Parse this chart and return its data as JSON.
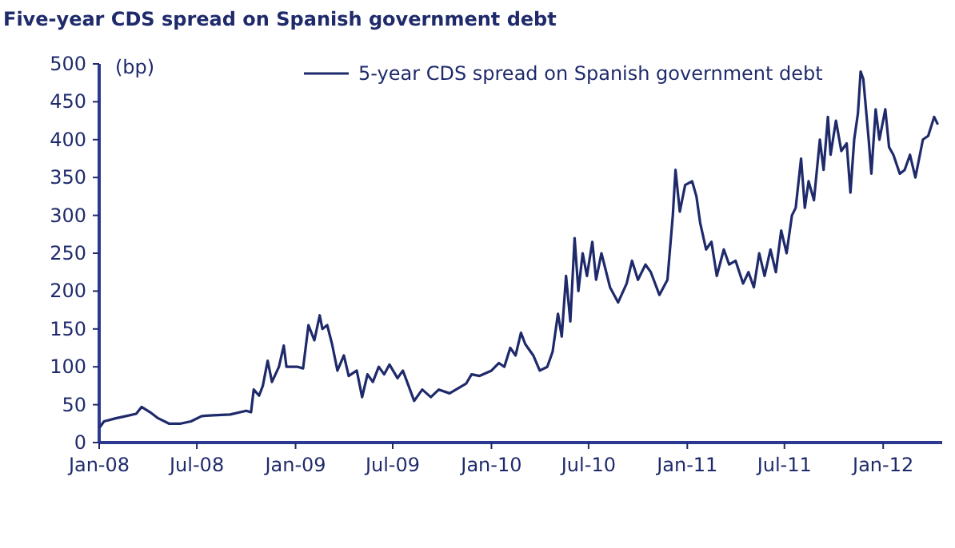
{
  "chart_data": {
    "type": "line",
    "title": "Five-year CDS spread on Spanish government debt",
    "ylabel": "(bp)",
    "x": [
      "2008-01-02",
      "2008-01-10",
      "2008-02-01",
      "2008-02-20",
      "2008-03-10",
      "2008-03-20",
      "2008-04-05",
      "2008-04-20",
      "2008-05-10",
      "2008-06-01",
      "2008-06-20",
      "2008-07-10",
      "2008-08-01",
      "2008-09-01",
      "2008-10-01",
      "2008-10-10",
      "2008-10-15",
      "2008-10-25",
      "2008-11-01",
      "2008-11-10",
      "2008-11-18",
      "2008-12-01",
      "2008-12-10",
      "2008-12-15",
      "2009-01-05",
      "2009-01-15",
      "2009-01-25",
      "2009-02-05",
      "2009-02-15",
      "2009-02-20",
      "2009-03-01",
      "2009-03-10",
      "2009-03-20",
      "2009-04-01",
      "2009-04-10",
      "2009-04-25",
      "2009-05-05",
      "2009-05-15",
      "2009-05-25",
      "2009-06-05",
      "2009-06-15",
      "2009-06-25",
      "2009-07-10",
      "2009-07-20",
      "2009-08-10",
      "2009-08-25",
      "2009-09-10",
      "2009-09-25",
      "2009-10-15",
      "2009-11-15",
      "2009-11-25",
      "2009-12-10",
      "2010-01-01",
      "2010-01-15",
      "2010-01-25",
      "2010-02-05",
      "2010-02-15",
      "2010-02-25",
      "2010-03-05",
      "2010-03-20",
      "2010-04-01",
      "2010-04-15",
      "2010-04-25",
      "2010-05-05",
      "2010-05-12",
      "2010-05-20",
      "2010-05-28",
      "2010-06-05",
      "2010-06-12",
      "2010-06-20",
      "2010-06-28",
      "2010-07-08",
      "2010-07-15",
      "2010-07-25",
      "2010-08-10",
      "2010-08-25",
      "2010-09-10",
      "2010-09-20",
      "2010-10-01",
      "2010-10-15",
      "2010-10-25",
      "2010-11-10",
      "2010-11-25",
      "2010-12-05",
      "2010-12-10",
      "2010-12-18",
      "2010-12-28",
      "2011-01-10",
      "2011-01-18",
      "2011-01-25",
      "2011-02-05",
      "2011-02-15",
      "2011-02-25",
      "2011-03-10",
      "2011-03-20",
      "2011-04-01",
      "2011-04-15",
      "2011-04-25",
      "2011-05-05",
      "2011-05-15",
      "2011-05-25",
      "2011-06-05",
      "2011-06-15",
      "2011-06-25",
      "2011-07-05",
      "2011-07-15",
      "2011-07-22",
      "2011-08-01",
      "2011-08-08",
      "2011-08-15",
      "2011-08-25",
      "2011-09-05",
      "2011-09-12",
      "2011-09-20",
      "2011-09-25",
      "2011-10-05",
      "2011-10-15",
      "2011-10-25",
      "2011-11-01",
      "2011-11-08",
      "2011-11-15",
      "2011-11-20",
      "2011-11-25",
      "2011-12-05",
      "2011-12-10",
      "2011-12-18",
      "2011-12-25",
      "2012-01-05",
      "2012-01-12",
      "2012-01-20",
      "2012-02-01",
      "2012-02-10",
      "2012-02-20",
      "2012-03-01",
      "2012-03-15",
      "2012-03-25",
      "2012-04-05",
      "2012-04-12"
    ],
    "series": [
      {
        "name": "5-year CDS spread on Spanish government debt",
        "color": "#1f2a6b",
        "values": [
          20,
          28,
          32,
          35,
          38,
          47,
          40,
          32,
          25,
          25,
          28,
          35,
          36,
          37,
          42,
          40,
          70,
          62,
          75,
          108,
          80,
          100,
          128,
          100,
          100,
          98,
          155,
          135,
          168,
          150,
          155,
          130,
          95,
          115,
          88,
          95,
          60,
          90,
          80,
          100,
          90,
          103,
          85,
          95,
          55,
          70,
          60,
          70,
          65,
          78,
          90,
          88,
          95,
          105,
          100,
          125,
          115,
          145,
          130,
          115,
          95,
          100,
          120,
          170,
          140,
          220,
          160,
          270,
          200,
          250,
          220,
          265,
          215,
          250,
          205,
          185,
          210,
          240,
          215,
          235,
          225,
          195,
          215,
          300,
          360,
          305,
          340,
          345,
          325,
          290,
          255,
          265,
          220,
          255,
          235,
          240,
          210,
          225,
          205,
          250,
          220,
          255,
          225,
          280,
          250,
          300,
          310,
          375,
          310,
          345,
          320,
          400,
          360,
          430,
          380,
          425,
          385,
          395,
          330,
          400,
          435,
          490,
          480,
          400,
          355,
          440,
          400,
          440,
          390,
          380,
          355,
          360,
          380,
          350,
          400,
          405,
          430,
          420
        ]
      }
    ],
    "xlim": [
      "2008-01-01",
      "2012-04-20"
    ],
    "xticks": [
      {
        "value": "2008-01-01",
        "label": "Jan-08"
      },
      {
        "value": "2008-07-01",
        "label": "Jul-08"
      },
      {
        "value": "2009-01-01",
        "label": "Jan-09"
      },
      {
        "value": "2009-07-01",
        "label": "Jul-09"
      },
      {
        "value": "2010-01-01",
        "label": "Jan-10"
      },
      {
        "value": "2010-07-01",
        "label": "Jul-10"
      },
      {
        "value": "2011-01-01",
        "label": "Jan-11"
      },
      {
        "value": "2011-07-01",
        "label": "Jul-11"
      },
      {
        "value": "2012-01-01",
        "label": "Jan-12"
      }
    ],
    "ylim": [
      0,
      500
    ],
    "yticks": [
      0,
      50,
      100,
      150,
      200,
      250,
      300,
      350,
      400,
      450,
      500
    ],
    "legend": "top right",
    "grid": false,
    "line_style": "solid",
    "marker": "none"
  }
}
